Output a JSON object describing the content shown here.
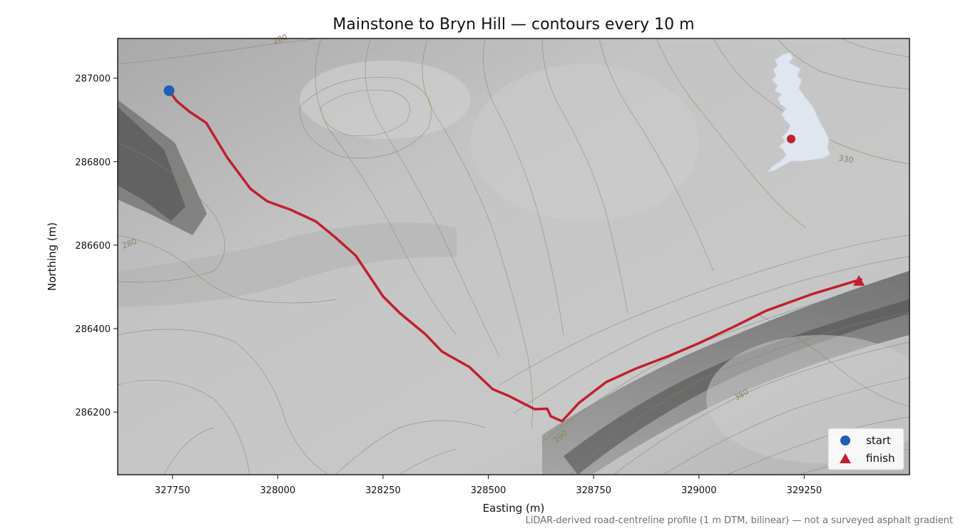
{
  "chart_data": {
    "type": "map",
    "title": "Mainstone to Bryn Hill — contours every 10 m",
    "xlabel": "Easting (m)",
    "ylabel": "Northing (m)",
    "xlim": [
      327620,
      329500
    ],
    "ylim": [
      286050,
      287095
    ],
    "x_ticks": [
      327750,
      328000,
      328250,
      328500,
      328750,
      329000,
      329250
    ],
    "y_ticks": [
      286200,
      286400,
      286600,
      286800,
      287000
    ],
    "route": {
      "color": "#c0202f",
      "points": [
        [
          327742,
          286970
        ],
        [
          327760,
          286945
        ],
        [
          327790,
          286920
        ],
        [
          327830,
          286893
        ],
        [
          327880,
          286810
        ],
        [
          327935,
          286735
        ],
        [
          327975,
          286705
        ],
        [
          328030,
          286685
        ],
        [
          328090,
          286657
        ],
        [
          328135,
          286620
        ],
        [
          328185,
          286575
        ],
        [
          328215,
          286530
        ],
        [
          328250,
          286477
        ],
        [
          328290,
          286437
        ],
        [
          328350,
          286387
        ],
        [
          328390,
          286345
        ],
        [
          328455,
          286308
        ],
        [
          328510,
          286255
        ],
        [
          328550,
          286238
        ],
        [
          328610,
          286207
        ],
        [
          328640,
          286208
        ],
        [
          328648,
          286190
        ],
        [
          328675,
          286178
        ],
        [
          328715,
          286222
        ],
        [
          328780,
          286272
        ],
        [
          328850,
          286304
        ],
        [
          328930,
          286335
        ],
        [
          329000,
          286365
        ],
        [
          329080,
          286403
        ],
        [
          329160,
          286443
        ],
        [
          329270,
          286483
        ],
        [
          329385,
          286518
        ]
      ]
    },
    "start": {
      "label": "start",
      "easting": 327742,
      "northing": 286970,
      "color": "#1f5fb4",
      "marker": "circle"
    },
    "finish": {
      "label": "finish",
      "easting": 329380,
      "northing": 286513,
      "color": "#c0202f",
      "marker": "triangle"
    },
    "contour_labels": [
      "280",
      "280",
      "330",
      "380",
      "280"
    ],
    "contour_interval_m": 10,
    "inset": {
      "shape": "great-britain-outline",
      "fill": "#dfe6f0",
      "location_marker_color": "#c0202f"
    },
    "legend": {
      "location": "lower-right",
      "entries": [
        "start",
        "finish"
      ]
    },
    "grid": false
  },
  "footnote": "LiDAR-derived road-centreline profile (1 m DTM, bilinear) — not a surveyed asphalt gradient"
}
